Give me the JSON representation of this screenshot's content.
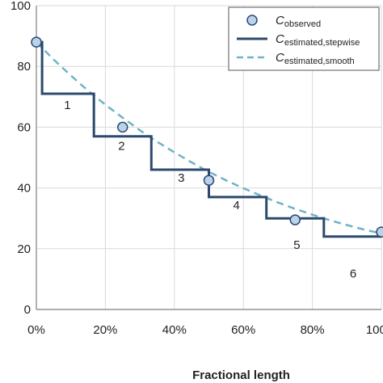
{
  "chart_data": {
    "type": "line",
    "xlabel": "Fractional length",
    "ylabel": "",
    "xlim": [
      0,
      1
    ],
    "ylim": [
      0,
      100
    ],
    "x_ticks": [
      {
        "value": 0,
        "label": "0%"
      },
      {
        "value": 0.2,
        "label": "20%"
      },
      {
        "value": 0.4,
        "label": "40%"
      },
      {
        "value": 0.6,
        "label": "60%"
      },
      {
        "value": 0.8,
        "label": "80%"
      },
      {
        "value": 1.0,
        "label": "100%"
      }
    ],
    "y_ticks": [
      {
        "value": 0,
        "label": "0"
      },
      {
        "value": 20,
        "label": "20"
      },
      {
        "value": 40,
        "label": "40"
      },
      {
        "value": 60,
        "label": "60"
      },
      {
        "value": 80,
        "label": "80"
      },
      {
        "value": 100,
        "label": "100"
      }
    ],
    "grid": true,
    "legend_position": "top-right",
    "series": [
      {
        "name_main": "C",
        "name_sub": "observed",
        "kind": "scatter",
        "color": "#b9d3ea",
        "edge_color": "#2c4a6e",
        "x": [
          0,
          0.25,
          0.5,
          0.75,
          1.0
        ],
        "y": [
          88,
          60,
          42.5,
          29.5,
          25.5
        ]
      },
      {
        "name_main": "C",
        "name_sub": "estimated,stepwise",
        "kind": "step",
        "color": "#2c4a6e",
        "x": [
          0,
          0.0167,
          0.0167,
          0.1667,
          0.1667,
          0.3333,
          0.3333,
          0.5,
          0.5,
          0.6667,
          0.6667,
          0.8333,
          0.8333,
          1.0
        ],
        "y": [
          88,
          88,
          71,
          71,
          57,
          57,
          46,
          46,
          37,
          37,
          30,
          30,
          24,
          24
        ]
      },
      {
        "name_main": "C",
        "name_sub": "estimated,smooth",
        "kind": "dashed-line",
        "color": "#6fb3c8",
        "x": [
          0,
          0.05,
          0.1,
          0.15,
          0.2,
          0.25,
          0.3,
          0.35,
          0.4,
          0.45,
          0.5,
          0.55,
          0.6,
          0.65,
          0.7,
          0.75,
          0.8,
          0.85,
          0.9,
          0.95,
          1.0
        ],
        "y": [
          88,
          82.3,
          77,
          72,
          67.4,
          63.1,
          59,
          55.2,
          51.7,
          48.4,
          45.3,
          42.5,
          39.9,
          37.5,
          35.2,
          33.1,
          31.2,
          29.4,
          27.8,
          26.3,
          25
        ]
      }
    ],
    "annotations": [
      {
        "text": "1",
        "x": 0.09,
        "y": 66
      },
      {
        "text": "2",
        "x": 0.247,
        "y": 52.5
      },
      {
        "text": "3",
        "x": 0.42,
        "y": 42
      },
      {
        "text": "4",
        "x": 0.58,
        "y": 33
      },
      {
        "text": "5",
        "x": 0.755,
        "y": 20
      },
      {
        "text": "6",
        "x": 0.918,
        "y": 10.5
      }
    ]
  }
}
